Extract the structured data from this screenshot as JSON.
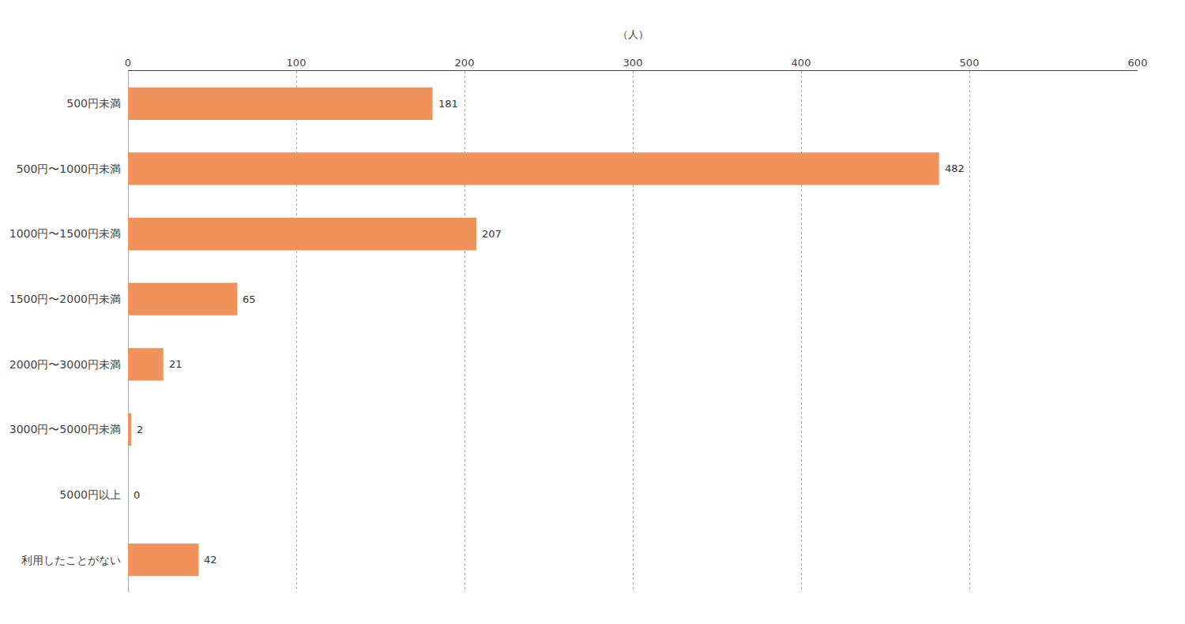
{
  "chart_data": {
    "type": "bar",
    "orientation": "horizontal",
    "categories": [
      "500円未満",
      "500円〜1000円未満",
      "1000円〜1500円未満",
      "1500円〜2000円未満",
      "2000円〜3000円未満",
      "3000円〜5000円未満",
      "5000円以上",
      "利用したことがない"
    ],
    "values": [
      181,
      482,
      207,
      65,
      21,
      2,
      0,
      42
    ],
    "color": "#F0935A",
    "xlabel": "（人）",
    "xlim": [
      0,
      600
    ],
    "xticks": [
      0,
      100,
      200,
      300,
      400,
      500,
      600
    ],
    "grid": true,
    "data_labels": true
  }
}
